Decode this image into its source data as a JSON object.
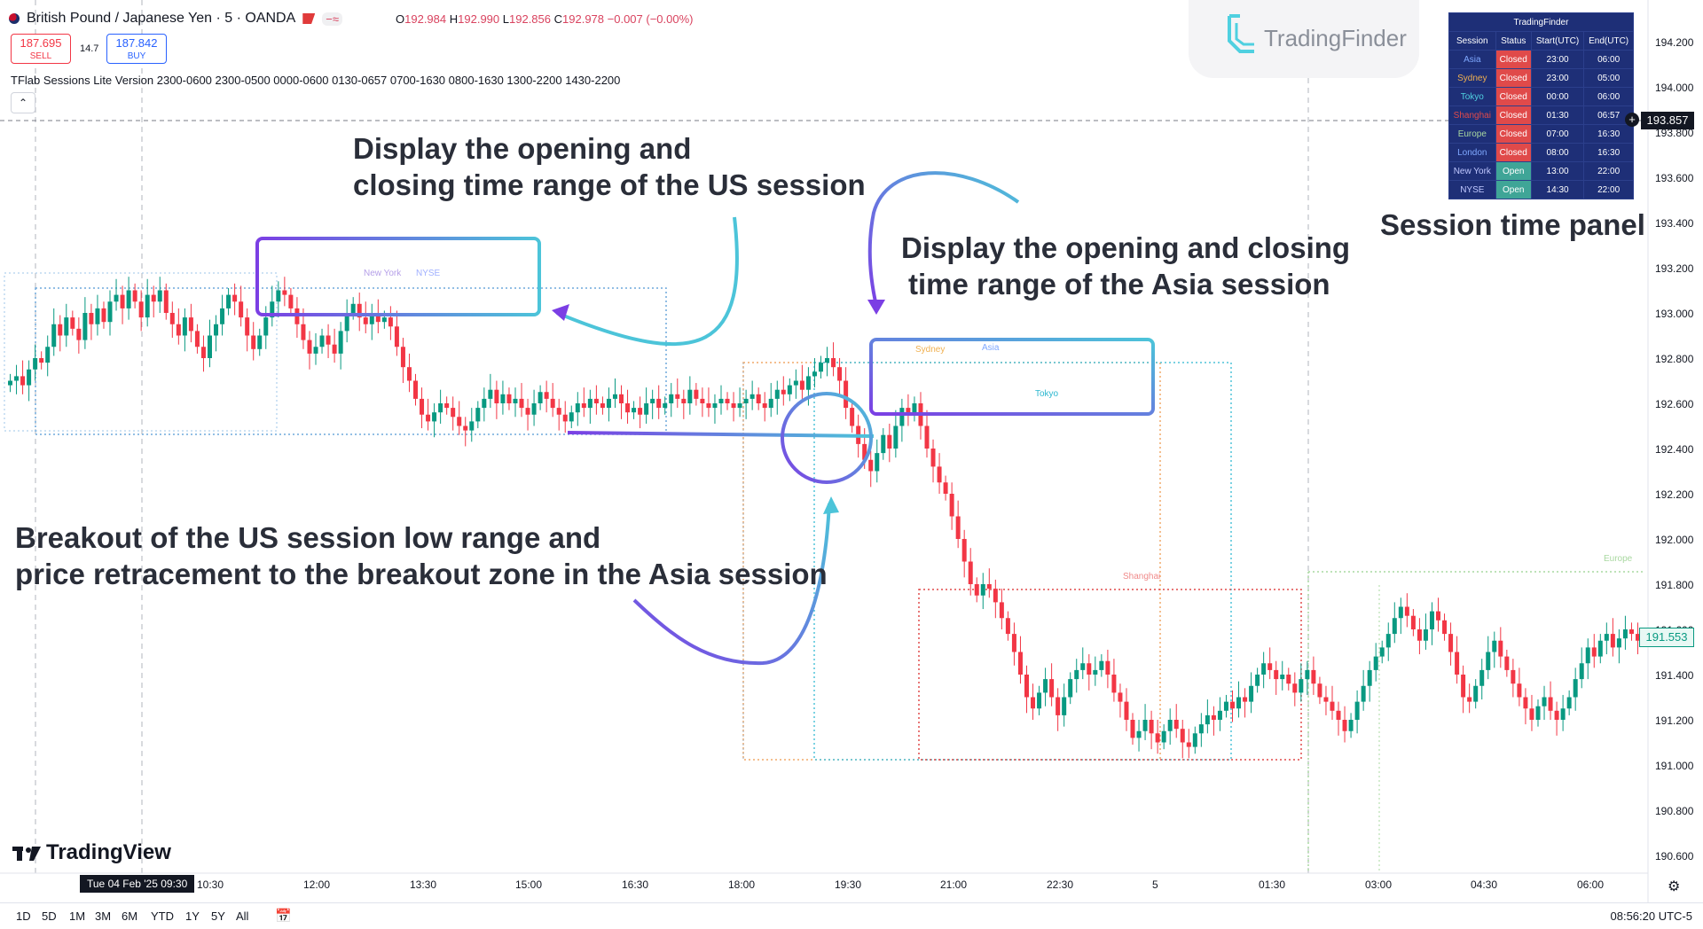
{
  "header": {
    "symbol": "British Pound / Japanese Yen · 5 · OANDA",
    "ohlc": {
      "o_label": "O",
      "o": "192.984",
      "h_label": "H",
      "h": "192.990",
      "l_label": "L",
      "l": "192.856",
      "c_label": "C",
      "c": "192.978",
      "change": "−0.007 (−0.00%)"
    }
  },
  "trade": {
    "sell_price": "187.695",
    "sell_label": "SELL",
    "spread": "14.7",
    "buy_price": "187.842",
    "buy_label": "BUY"
  },
  "indicator": {
    "label": "TFlab Sessions Lite Version 2300-0600 2300-0500 0000-0600 0130-0657 0700-1630 0800-1630 1300-2200 1430-2200"
  },
  "brand": {
    "tf_name": "TradingFinder",
    "tv_name": "TradingView"
  },
  "price_axis": {
    "ticks": [
      "194.200",
      "194.000",
      "193.800",
      "193.600",
      "193.400",
      "193.200",
      "193.000",
      "192.800",
      "192.600",
      "192.400",
      "192.200",
      "192.000",
      "191.800",
      "191.600",
      "191.400",
      "191.200",
      "191.000",
      "190.800",
      "190.600"
    ],
    "crosshair_price": "193.857",
    "last_price": "191.553"
  },
  "time_axis": {
    "ticks": [
      "10:30",
      "12:00",
      "13:30",
      "15:00",
      "16:30",
      "18:00",
      "19:30",
      "21:00",
      "22:30",
      "5",
      "01:30",
      "03:00",
      "04:30",
      "06:00"
    ],
    "cursor_label": "Tue 04 Feb '25   09:30"
  },
  "session_panel": {
    "title": "TradingFinder",
    "headers": [
      "Session",
      "Status",
      "Start(UTC)",
      "End(UTC)"
    ],
    "rows": [
      {
        "session": "Asia",
        "status": "Closed",
        "start": "23:00",
        "end": "06:00",
        "color": "#7fa8ff"
      },
      {
        "session": "Sydney",
        "status": "Closed",
        "start": "23:00",
        "end": "05:00",
        "color": "#f0b050"
      },
      {
        "session": "Tokyo",
        "status": "Closed",
        "start": "00:00",
        "end": "06:00",
        "color": "#4fd0e0"
      },
      {
        "session": "Shanghai",
        "status": "Closed",
        "start": "01:30",
        "end": "06:57",
        "color": "#e04a4a"
      },
      {
        "session": "Europe",
        "status": "Closed",
        "start": "07:00",
        "end": "16:30",
        "color": "#a9d8a0"
      },
      {
        "session": "London",
        "status": "Closed",
        "start": "08:00",
        "end": "16:30",
        "color": "#7fa8ff"
      },
      {
        "session": "New York",
        "status": "Open",
        "start": "13:00",
        "end": "22:00",
        "color": "#c0c8ff"
      },
      {
        "session": "NYSE",
        "status": "Open",
        "start": "14:30",
        "end": "22:00",
        "color": "#c0c8ff"
      }
    ]
  },
  "chart_labels": {
    "new_york": "New York",
    "nyse": "NYSE",
    "sydney": "Sydney",
    "asia": "Asia",
    "tokyo": "Tokyo",
    "shanghai": "Shanghai",
    "europe": "Europe"
  },
  "annotations": {
    "us_line1": "Display the opening and",
    "us_line2": "closing time range of the US session",
    "asia_line1": "Display the opening and closing",
    "asia_line2": "time range of the Asia session",
    "panel_caption": "Session time panel",
    "breakout_line1": "Breakout of the US session low range and",
    "breakout_line2": "price retracement to the breakout zone in the Asia session"
  },
  "bottom_bar": {
    "ranges": [
      "1D",
      "5D",
      "1M",
      "3M",
      "6M",
      "YTD",
      "1Y",
      "5Y",
      "All"
    ],
    "clock": "08:56:20 UTC-5"
  },
  "colors": {
    "up": "#089981",
    "down": "#f23645",
    "accent_cyan": "#4cc4d9",
    "accent_purple": "#7b3fe4"
  },
  "chart_data": {
    "type": "candlestick",
    "ylim": [
      190.5,
      194.3
    ],
    "closes": [
      192.7,
      192.72,
      192.68,
      192.75,
      192.8,
      192.78,
      192.85,
      192.95,
      192.9,
      192.98,
      192.93,
      192.88,
      193.0,
      192.95,
      193.02,
      192.96,
      193.05,
      193.08,
      193.02,
      193.1,
      193.05,
      192.98,
      193.08,
      193.05,
      193.1,
      193.0,
      192.95,
      192.9,
      192.98,
      192.92,
      192.85,
      192.8,
      192.9,
      192.95,
      193.02,
      193.08,
      193.05,
      192.98,
      192.9,
      192.84,
      192.9,
      192.98,
      193.05,
      193.1,
      193.08,
      193.02,
      192.95,
      192.88,
      192.82,
      192.85,
      192.9,
      192.86,
      192.82,
      192.92,
      193.0,
      193.04,
      192.98,
      192.95,
      193.0,
      192.96,
      192.98,
      192.94,
      192.85,
      192.76,
      192.7,
      192.62,
      192.55,
      192.52,
      192.56,
      192.6,
      192.58,
      192.54,
      192.5,
      192.48,
      192.52,
      192.58,
      192.62,
      192.66,
      192.6,
      192.64,
      192.6,
      192.62,
      192.58,
      192.55,
      192.6,
      192.65,
      192.62,
      192.58,
      192.55,
      192.52,
      192.56,
      192.6,
      192.58,
      192.62,
      192.6,
      192.58,
      192.62,
      192.64,
      192.6,
      192.56,
      192.58,
      192.55,
      192.6,
      192.62,
      192.58,
      192.6,
      192.64,
      192.62,
      192.6,
      192.66,
      192.62,
      192.6,
      192.58,
      192.6,
      192.62,
      192.6,
      192.58,
      192.6,
      192.62,
      192.64,
      192.6,
      192.58,
      192.62,
      192.66,
      192.64,
      192.68,
      192.7,
      192.66,
      192.72,
      192.74,
      192.78,
      192.8,
      192.76,
      192.7,
      192.58,
      192.5,
      192.42,
      192.35,
      192.3,
      192.38,
      192.46,
      192.4,
      192.5,
      192.58,
      192.55,
      192.6,
      192.5,
      192.4,
      192.32,
      192.25,
      192.2,
      192.1,
      192.0,
      191.9,
      191.8,
      191.75,
      191.8,
      191.78,
      191.72,
      191.65,
      191.58,
      191.5,
      191.4,
      191.3,
      191.25,
      191.32,
      191.38,
      191.3,
      191.22,
      191.3,
      191.38,
      191.42,
      191.45,
      191.4,
      191.42,
      191.46,
      191.4,
      191.32,
      191.28,
      191.2,
      191.12,
      191.15,
      191.2,
      191.14,
      191.1,
      191.15,
      191.2,
      191.16,
      191.1,
      191.08,
      191.14,
      191.18,
      191.22,
      191.2,
      191.24,
      191.28,
      191.25,
      191.3,
      191.28,
      191.35,
      191.4,
      191.45,
      191.42,
      191.38,
      191.4,
      191.36,
      191.32,
      191.38,
      191.42,
      191.36,
      191.3,
      191.28,
      191.24,
      191.2,
      191.15,
      191.2,
      191.28,
      191.35,
      191.42,
      191.48,
      191.52,
      191.58,
      191.65,
      191.7,
      191.66,
      191.6,
      191.55,
      191.6,
      191.68,
      191.64,
      191.58,
      191.5,
      191.4,
      191.3,
      191.28,
      191.35,
      191.42,
      191.5,
      191.55,
      191.48,
      191.42,
      191.36,
      191.3,
      191.25,
      191.2,
      191.26,
      191.3,
      191.24,
      191.2,
      191.25,
      191.3,
      191.38,
      191.45,
      191.52,
      191.48,
      191.55,
      191.58,
      191.52,
      191.56,
      191.6,
      191.58,
      191.55
    ]
  }
}
